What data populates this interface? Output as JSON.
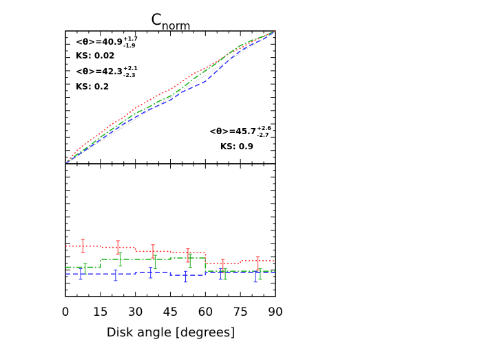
{
  "chart_data": {
    "title": "C",
    "title_sub": "norm",
    "xlabel": "Disk angle [degrees]",
    "xlim": [
      0,
      90
    ],
    "x_ticks": [
      0,
      15,
      30,
      45,
      60,
      75,
      90
    ],
    "x_tick_labels": [
      "0",
      "15",
      "30",
      "45",
      "60",
      "75",
      "90"
    ],
    "colors": {
      "red": "#ff2a2a",
      "green": "#18b018",
      "blue": "#2a2aff",
      "gray": "#999999"
    },
    "top_panel": {
      "type": "line",
      "ylim": [
        0,
        1
      ],
      "series": [
        {
          "color": "red",
          "dash": "dotted",
          "x": [
            0,
            5,
            10,
            15,
            20,
            25,
            30,
            35,
            40,
            45,
            50,
            55,
            60,
            65,
            70,
            75,
            80,
            85,
            90
          ],
          "y": [
            0,
            0.1,
            0.17,
            0.23,
            0.3,
            0.35,
            0.42,
            0.47,
            0.52,
            0.56,
            0.62,
            0.68,
            0.72,
            0.77,
            0.83,
            0.87,
            0.92,
            0.96,
            1.0
          ]
        },
        {
          "color": "green",
          "dash": "dashdot",
          "x": [
            0,
            5,
            10,
            15,
            20,
            25,
            30,
            35,
            40,
            45,
            50,
            55,
            60,
            65,
            70,
            75,
            80,
            85,
            90
          ],
          "y": [
            0,
            0.07,
            0.13,
            0.2,
            0.26,
            0.32,
            0.38,
            0.42,
            0.47,
            0.51,
            0.57,
            0.64,
            0.7,
            0.76,
            0.83,
            0.89,
            0.93,
            0.96,
            1.0
          ]
        },
        {
          "color": "blue",
          "dash": "dashed",
          "x": [
            0,
            5,
            10,
            15,
            20,
            25,
            30,
            35,
            40,
            45,
            50,
            55,
            60,
            65,
            70,
            75,
            80,
            85,
            90
          ],
          "y": [
            0,
            0.06,
            0.12,
            0.18,
            0.24,
            0.3,
            0.35,
            0.4,
            0.44,
            0.48,
            0.54,
            0.58,
            0.62,
            0.7,
            0.78,
            0.85,
            0.9,
            0.94,
            1.0
          ]
        },
        {
          "color": "gray",
          "dash": "thin",
          "x": [
            0,
            90
          ],
          "y": [
            0,
            1
          ]
        }
      ],
      "annotations": [
        {
          "theta": "40.9",
          "sup": "+1.7",
          "sub": "-1.9",
          "ks": "KS: 0.02",
          "align": "left",
          "row": 0
        },
        {
          "theta": "42.3",
          "sup": "+2.1",
          "sub": "-2.3",
          "ks": "KS: 0.2",
          "align": "left",
          "row": 1
        },
        {
          "theta": "45.7",
          "sup": "+2.6",
          "sub": "-2.7",
          "ks": "KS: 0.9",
          "align": "right",
          "row": 2
        }
      ],
      "theta_prefix": "<θ>="
    },
    "bottom_panel": {
      "type": "step",
      "ylim": [
        0,
        1
      ],
      "series": [
        {
          "color": "red",
          "dash": "dotted",
          "edges": [
            0,
            15,
            30,
            45,
            60,
            75,
            90
          ],
          "values": [
            0.38,
            0.37,
            0.34,
            0.33,
            0.25,
            0.27
          ],
          "err_x": [
            7.5,
            22.5,
            37.5,
            52.5,
            67.5,
            82.5
          ],
          "err_y": [
            0.38,
            0.37,
            0.34,
            0.31,
            0.23,
            0.25
          ],
          "err": [
            0.05,
            0.05,
            0.05,
            0.05,
            0.05,
            0.05
          ]
        },
        {
          "color": "green",
          "dash": "dashdot",
          "edges": [
            0,
            15,
            30,
            45,
            60,
            75,
            90
          ],
          "values": [
            0.22,
            0.28,
            0.28,
            0.29,
            0.19,
            0.19
          ],
          "err_x": [
            8.5,
            23.5,
            38.5,
            53.5,
            68.5,
            83.5
          ],
          "err_y": [
            0.21,
            0.28,
            0.26,
            0.27,
            0.17,
            0.17
          ],
          "err": [
            0.04,
            0.05,
            0.05,
            0.05,
            0.04,
            0.04
          ]
        },
        {
          "color": "blue",
          "dash": "dashed",
          "edges": [
            0,
            15,
            30,
            45,
            60,
            75,
            90
          ],
          "values": [
            0.17,
            0.17,
            0.18,
            0.16,
            0.18,
            0.18
          ],
          "err_x": [
            6.5,
            21.5,
            36.5,
            51.5,
            66.5,
            81.5
          ],
          "err_y": [
            0.17,
            0.16,
            0.18,
            0.15,
            0.17,
            0.15
          ],
          "err": [
            0.04,
            0.04,
            0.04,
            0.04,
            0.04,
            0.04
          ]
        }
      ]
    }
  }
}
